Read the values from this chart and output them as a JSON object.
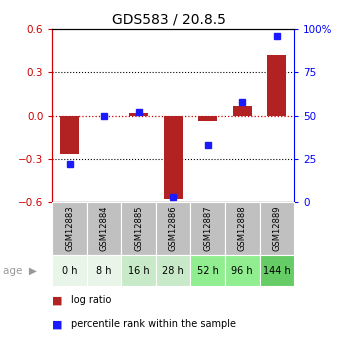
{
  "title": "GDS583 / 20.8.5",
  "samples": [
    "GSM12883",
    "GSM12884",
    "GSM12885",
    "GSM12886",
    "GSM12887",
    "GSM12888",
    "GSM12889"
  ],
  "ages": [
    "0 h",
    "8 h",
    "16 h",
    "28 h",
    "52 h",
    "96 h",
    "144 h"
  ],
  "log_ratio": [
    -0.27,
    0.0,
    0.02,
    -0.58,
    -0.04,
    0.07,
    0.42
  ],
  "percentile_rank": [
    22,
    50,
    52,
    3,
    33,
    58,
    96
  ],
  "ylim_left": [
    -0.6,
    0.6
  ],
  "ylim_right": [
    0,
    100
  ],
  "yticks_left": [
    -0.6,
    -0.3,
    0.0,
    0.3,
    0.6
  ],
  "yticks_right": [
    0,
    25,
    50,
    75,
    100
  ],
  "bar_color": "#B22222",
  "dot_color": "#1a1aff",
  "zero_line_color": "#cc0000",
  "age_colors": [
    "#e8f5e8",
    "#e8f5e8",
    "#c8eac8",
    "#c8eac8",
    "#90ee90",
    "#90ee90",
    "#66cc66"
  ],
  "sample_bg_color": "#c0c0c0",
  "legend_bar_label": "log ratio",
  "legend_dot_label": "percentile rank within the sample"
}
